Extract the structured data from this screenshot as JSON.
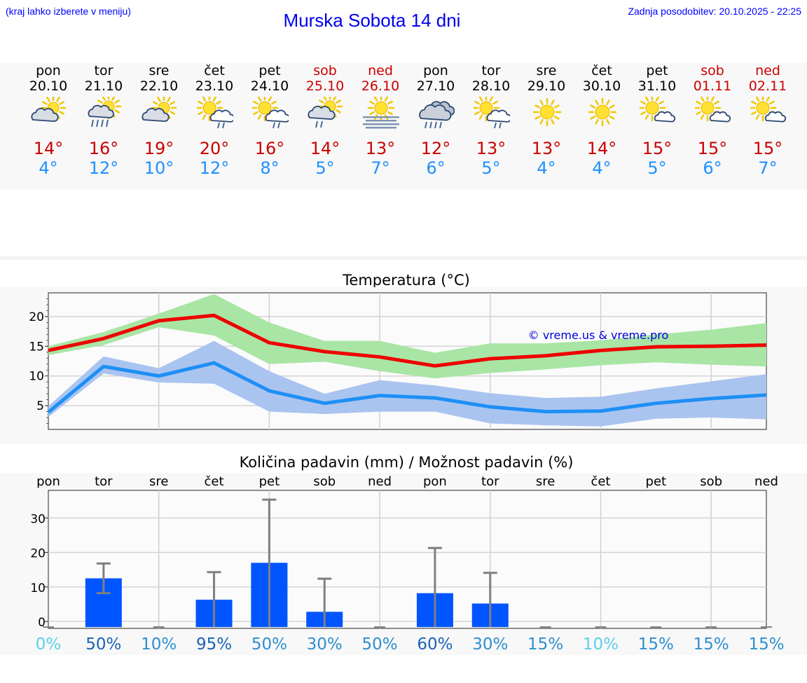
{
  "header": {
    "hint": "(kraj lahko izberete v meniju)",
    "title": "Murska Sobota 14 dni",
    "updated": "Zadnja posodobitev: 20.10.2025 - 22:25"
  },
  "days": [
    {
      "name": "pon",
      "date": "20.10",
      "weekend": false,
      "icon": "partly-cloudy-icon",
      "tmax": "14°",
      "tmin": "4°"
    },
    {
      "name": "tor",
      "date": "21.10",
      "weekend": false,
      "icon": "partly-cloudy-rain-icon",
      "tmax": "16°",
      "tmin": "12°"
    },
    {
      "name": "sre",
      "date": "22.10",
      "weekend": false,
      "icon": "partly-cloudy-icon",
      "tmax": "19°",
      "tmin": "10°"
    },
    {
      "name": "čet",
      "date": "23.10",
      "weekend": false,
      "icon": "sun-cloud-light-rain-icon",
      "tmax": "20°",
      "tmin": "12°"
    },
    {
      "name": "pet",
      "date": "24.10",
      "weekend": false,
      "icon": "sun-cloud-light-rain-icon",
      "tmax": "16°",
      "tmin": "8°"
    },
    {
      "name": "sob",
      "date": "25.10",
      "weekend": true,
      "icon": "partly-cloudy-light-rain-icon",
      "tmax": "14°",
      "tmin": "5°"
    },
    {
      "name": "ned",
      "date": "26.10",
      "weekend": true,
      "icon": "sun-fog-icon",
      "tmax": "13°",
      "tmin": "7°"
    },
    {
      "name": "pon",
      "date": "27.10",
      "weekend": false,
      "icon": "cloudy-rain-icon",
      "tmax": "12°",
      "tmin": "6°"
    },
    {
      "name": "tor",
      "date": "28.10",
      "weekend": false,
      "icon": "sun-cloud-light-rain-icon",
      "tmax": "13°",
      "tmin": "5°"
    },
    {
      "name": "sre",
      "date": "29.10",
      "weekend": false,
      "icon": "sun-icon",
      "tmax": "13°",
      "tmin": "4°"
    },
    {
      "name": "čet",
      "date": "30.10",
      "weekend": false,
      "icon": "sun-icon",
      "tmax": "14°",
      "tmin": "4°"
    },
    {
      "name": "pet",
      "date": "31.10",
      "weekend": false,
      "icon": "sun-small-cloud-icon",
      "tmax": "15°",
      "tmin": "5°"
    },
    {
      "name": "sob",
      "date": "01.11",
      "weekend": true,
      "icon": "sun-small-cloud-icon",
      "tmax": "15°",
      "tmin": "6°"
    },
    {
      "name": "ned",
      "date": "02.11",
      "weekend": true,
      "icon": "sun-small-cloud-icon",
      "tmax": "15°",
      "tmin": "7°"
    }
  ],
  "chart_data": [
    {
      "type": "line",
      "title": "Temperatura (°C)",
      "watermark": "© vreme.us & vreme.pro",
      "x": [
        0,
        1,
        2,
        3,
        4,
        5,
        6,
        7,
        8,
        9,
        10,
        11,
        12,
        13
      ],
      "ylim": [
        1,
        24
      ],
      "yticks": [
        5,
        10,
        15,
        20
      ],
      "grid": true,
      "series": [
        {
          "values": [
            14.3,
            16.3,
            19.3,
            20.2,
            15.6,
            14.1,
            13.2,
            11.7,
            12.9,
            13.4,
            14.3,
            14.9,
            15.0,
            15.2
          ],
          "band_low": [
            13.5,
            15.2,
            18.2,
            16.8,
            12.0,
            12.4,
            10.8,
            9.6,
            10.5,
            11.1,
            11.8,
            12.3,
            11.9,
            11.6
          ],
          "band_high": [
            15.0,
            17.4,
            20.5,
            23.8,
            19.0,
            15.9,
            15.9,
            13.9,
            15.5,
            15.5,
            16.0,
            17.0,
            17.8,
            18.9
          ],
          "color": "#ee0000",
          "band_color": "#a9e5a5"
        },
        {
          "values": [
            3.9,
            11.6,
            10.0,
            12.2,
            7.5,
            5.4,
            6.7,
            6.3,
            4.8,
            4.0,
            4.1,
            5.4,
            6.2,
            6.8
          ],
          "band_low": [
            3.1,
            10.4,
            8.9,
            8.7,
            4.0,
            3.6,
            4.0,
            4.0,
            2.0,
            1.7,
            1.5,
            2.8,
            3.0,
            2.7
          ],
          "band_high": [
            4.9,
            13.3,
            11.3,
            15.9,
            10.8,
            7.0,
            9.3,
            8.4,
            7.1,
            6.3,
            6.5,
            7.9,
            9.1,
            10.3
          ],
          "color": "#1e8ff5",
          "band_color": "#aac4f0"
        }
      ]
    },
    {
      "type": "bar",
      "title": "Količina padavin (mm) / Možnost padavin (%)",
      "categories": [
        "pon",
        "tor",
        "sre",
        "čet",
        "pet",
        "sob",
        "ned",
        "pon",
        "tor",
        "sre",
        "čet",
        "pet",
        "sob",
        "ned"
      ],
      "values": [
        0,
        12.5,
        0,
        6.3,
        17.0,
        2.8,
        0,
        8.2,
        5.2,
        0,
        0,
        0,
        0,
        0
      ],
      "err_low": [
        0,
        8.2,
        0,
        0,
        0,
        0,
        0,
        0,
        0,
        0,
        0,
        0,
        0,
        0
      ],
      "err_high": [
        0,
        16.8,
        0,
        14.3,
        35.3,
        12.4,
        0,
        21.3,
        14.1,
        0,
        0,
        0,
        0,
        0
      ],
      "probabilities": [
        "0%",
        "50%",
        "10%",
        "95%",
        "50%",
        "30%",
        "50%",
        "60%",
        "30%",
        "15%",
        "10%",
        "15%",
        "15%",
        "15%"
      ],
      "prob_colors": [
        "#5bd0e8",
        "#1a63b5",
        "#2e8fd0",
        "#1a63b5",
        "#2e8fd0",
        "#2e8fd0",
        "#2e8fd0",
        "#1a63b5",
        "#2e8fd0",
        "#2e8fd0",
        "#5bd0e8",
        "#2e8fd0",
        "#2e8fd0",
        "#2e8fd0"
      ],
      "ylim": [
        -2,
        38
      ],
      "yticks": [
        0,
        10,
        20,
        30
      ],
      "bar_color": "#0055ff",
      "grid": true
    }
  ]
}
